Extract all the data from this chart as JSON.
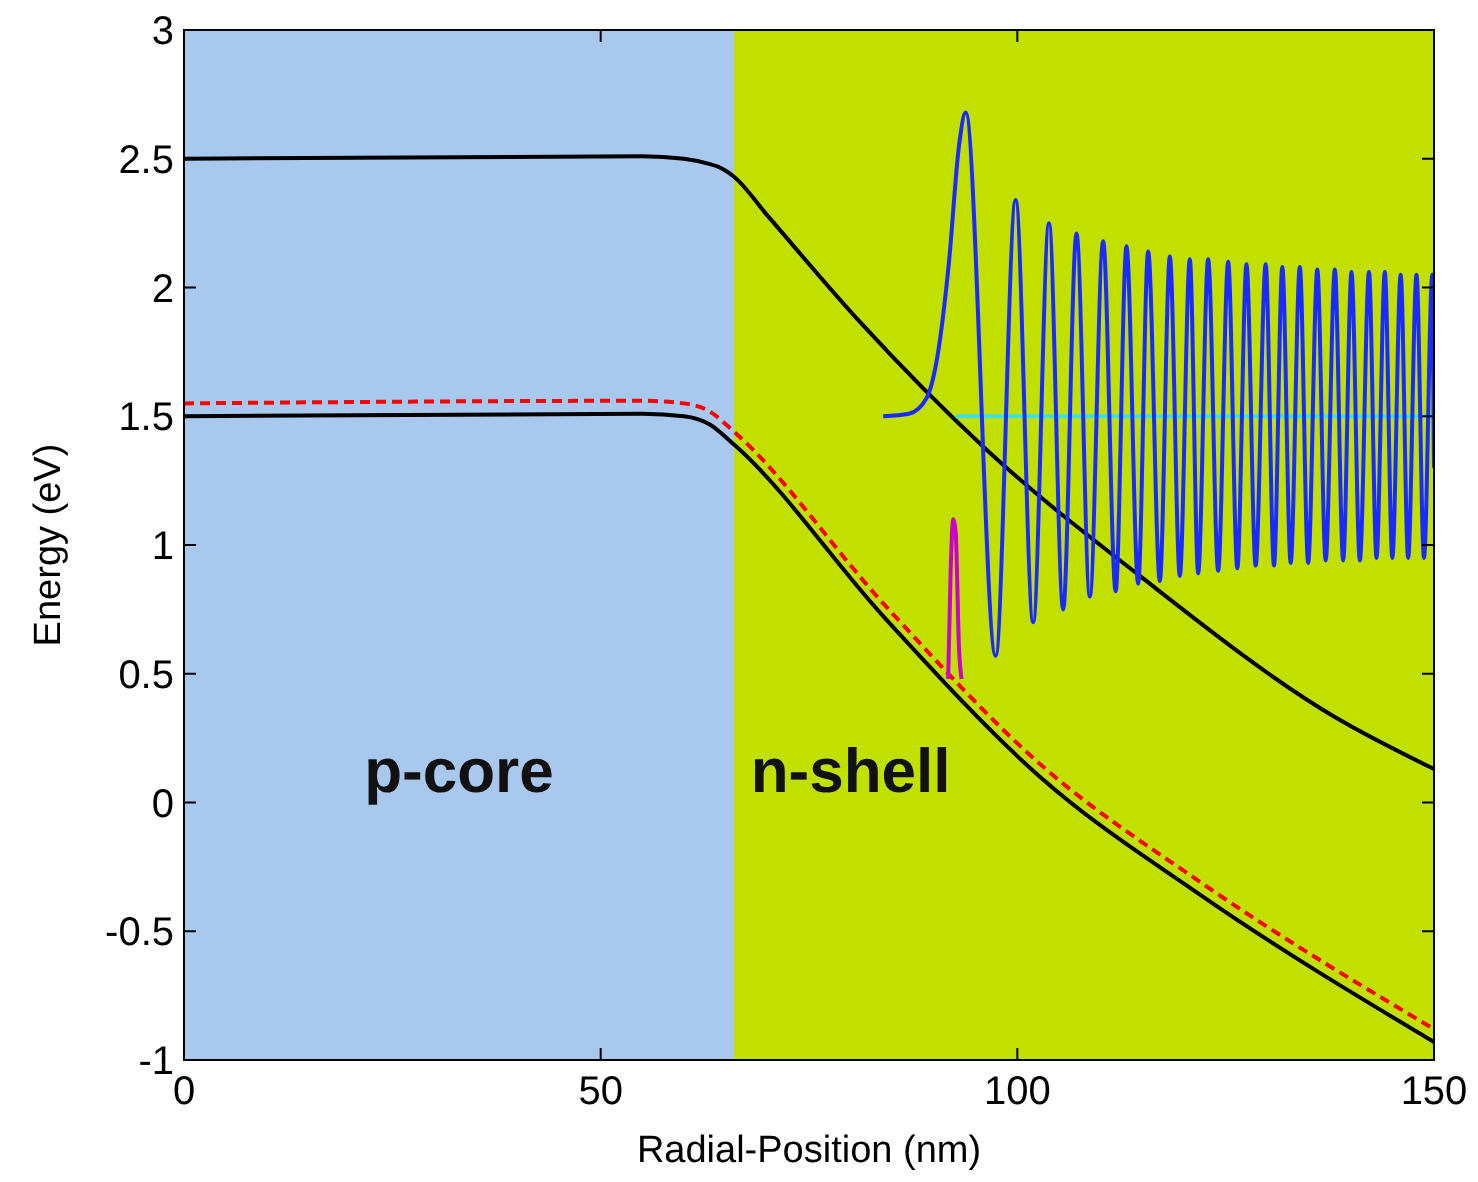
{
  "chart_data": {
    "type": "line",
    "xlabel": "Radial-Position (nm)",
    "ylabel": "Energy (eV)",
    "xlim": [
      0,
      150
    ],
    "ylim": [
      -1,
      3
    ],
    "xticks": [
      0,
      50,
      100,
      150
    ],
    "yticks": [
      -1,
      -0.5,
      0,
      0.5,
      1,
      1.5,
      2,
      2.5,
      3
    ],
    "grid": false,
    "marker": "none",
    "bands": [
      {
        "axis": "x",
        "from": 0,
        "to": 66,
        "label": "p-core",
        "color": "#a8c8ee"
      },
      {
        "axis": "x",
        "from": 66,
        "to": 150,
        "label": "n-shell",
        "color": "#c2e000"
      }
    ],
    "series": [
      {
        "color": "#000000",
        "x": [
          0,
          55,
          60,
          63,
          64,
          66,
          70,
          81,
          96.3,
          114.7,
          138.2,
          150
        ],
        "values": [
          2.5,
          2.51,
          2.5,
          2.48,
          2.47,
          2.43,
          2.28,
          1.87,
          1.37,
          0.88,
          0.33,
          0.13
        ]
      },
      {
        "color": "#000000",
        "x": [
          0,
          55,
          60,
          63,
          66,
          84,
          102.7,
          122,
          150
        ],
        "values": [
          1.5,
          1.51,
          1.5,
          1.47,
          1.39,
          0.72,
          0.1,
          -0.36,
          -0.93
        ]
      },
      {
        "color": "#ff0000",
        "line_style": "dashed",
        "x": [
          0,
          55,
          60,
          63,
          66,
          84,
          102.7,
          122,
          150
        ],
        "values": [
          1.55,
          1.56,
          1.55,
          1.52,
          1.44,
          0.77,
          0.15,
          -0.31,
          -0.88
        ]
      },
      {
        "color": "#40e0e0",
        "x": [
          92.6,
          150
        ],
        "values": [
          1.5,
          1.5
        ]
      },
      {
        "color": "#cc00cc",
        "x": [
          91.7,
          92,
          92.3,
          92.6,
          93,
          93.3
        ],
        "values": [
          0.48,
          0.9,
          1.1,
          1.05,
          0.6,
          0.48
        ]
      },
      {
        "color": "#1a2bff",
        "x": [
          83.9,
          87,
          89.1,
          90.5,
          91.8,
          93,
          93.8,
          97.4,
          99.8,
          101.9,
          103.8,
          105.5,
          107.1,
          108.7,
          110.3,
          111.8,
          113.1,
          114.5,
          115.7,
          117.1,
          118.3,
          119.5,
          120.7,
          121.7,
          122.9,
          124.1,
          125.3,
          126.4,
          127.5,
          128.6,
          129.8,
          130.8,
          131.8,
          132.8,
          133.9,
          134.9,
          136,
          137,
          138.1,
          139.1,
          140.1,
          141.1,
          142.2,
          143.1,
          144.1,
          145,
          146,
          146.9,
          147.9,
          148.8,
          149.8,
          150
        ],
        "values": [
          1.5,
          1.51,
          1.57,
          1.75,
          2.1,
          2.55,
          2.68,
          0.57,
          2.34,
          0.7,
          2.25,
          0.75,
          2.21,
          0.8,
          2.18,
          0.82,
          2.16,
          0.85,
          2.14,
          0.86,
          2.12,
          0.88,
          2.11,
          0.89,
          2.11,
          0.9,
          2.1,
          0.91,
          2.09,
          0.92,
          2.09,
          0.92,
          2.08,
          0.93,
          2.08,
          0.93,
          2.07,
          0.94,
          2.07,
          0.94,
          2.06,
          0.94,
          2.06,
          0.95,
          2.06,
          0.95,
          2.05,
          0.95,
          2.05,
          0.95,
          2.05,
          1.3
        ]
      }
    ]
  }
}
